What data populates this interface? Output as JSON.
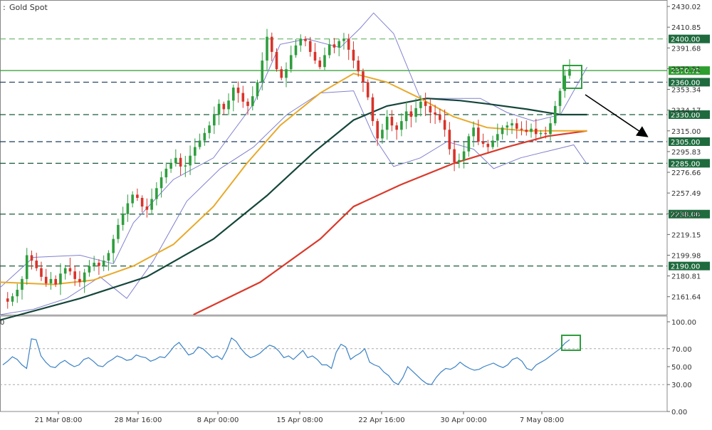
{
  "chart_title": "Gold Spot",
  "chart_data": [
    {
      "type": "candlestick",
      "title": "Gold Spot",
      "ylim": [
        2145,
        2436
      ],
      "y_ticks": [
        "2430.02",
        "2410.85",
        "2391.68",
        "2372.51",
        "2353.34",
        "2334.17",
        "2315.00",
        "2295.83",
        "2276.66",
        "2257.49",
        "2238.32",
        "2219.15",
        "2199.98",
        "2180.81",
        "2161.64"
      ],
      "x_labels": [
        "21 Mar 08:00",
        "28 Mar 16:00",
        "8 Apr 00:00",
        "15 Apr 08:00",
        "22 Apr 16:00",
        "30 Apr 00:00",
        "7 May 08:00"
      ],
      "horizontal_levels": [
        {
          "label": "2400.00",
          "value": 2400.0,
          "style": "dashed",
          "color": "#66b266"
        },
        {
          "label": "2370.72",
          "value": 2370.72,
          "style": "solid",
          "color": "#2e9e2e"
        },
        {
          "label": "2360.00",
          "value": 2360.0,
          "style": "dashed",
          "color": "#1a3d5c"
        },
        {
          "label": "2330.00",
          "value": 2330.0,
          "style": "dashed",
          "color": "#1a5c3a"
        },
        {
          "label": "2305.00",
          "value": 2305.0,
          "style": "dashed",
          "color": "#1a3d5c"
        },
        {
          "label": "2285.00",
          "value": 2285.0,
          "style": "dashed",
          "color": "#1a5c3a"
        },
        {
          "label": "2238.00",
          "value": 2238.0,
          "style": "dashed",
          "color": "#1a5c3a"
        },
        {
          "label": "2190.00",
          "value": 2190.0,
          "style": "dashed",
          "color": "#1a5c3a"
        }
      ],
      "price_path": [
        2160,
        2157,
        2162,
        2168,
        2178,
        2200,
        2195,
        2188,
        2180,
        2174,
        2178,
        2173,
        2183,
        2188,
        2185,
        2178,
        2175,
        2184,
        2190,
        2193,
        2190,
        2195,
        2202,
        2215,
        2228,
        2238,
        2248,
        2256,
        2253,
        2245,
        2242,
        2252,
        2262,
        2272,
        2280,
        2285,
        2290,
        2282,
        2283,
        2292,
        2300,
        2306,
        2313,
        2320,
        2330,
        2340,
        2335,
        2343,
        2355,
        2350,
        2342,
        2338,
        2347,
        2360,
        2380,
        2402,
        2388,
        2372,
        2364,
        2372,
        2385,
        2394,
        2400,
        2398,
        2388,
        2380,
        2374,
        2385,
        2395,
        2392,
        2398,
        2400,
        2390,
        2380,
        2370,
        2360,
        2346,
        2324,
        2308,
        2316,
        2328,
        2320,
        2316,
        2324,
        2333,
        2328,
        2336,
        2342,
        2338,
        2332,
        2330,
        2325,
        2316,
        2298,
        2286,
        2288,
        2296,
        2310,
        2318,
        2305,
        2303,
        2300,
        2306,
        2312,
        2318,
        2320,
        2322,
        2317,
        2316,
        2314,
        2317,
        2312,
        2313,
        2312,
        2322,
        2338,
        2352,
        2366,
        2372
      ],
      "sma_slow": [
        [
          0.0,
          2140
        ],
        [
          0.12,
          2160
        ],
        [
          0.22,
          2180
        ],
        [
          0.32,
          2215
        ],
        [
          0.4,
          2255
        ],
        [
          0.47,
          2295
        ],
        [
          0.53,
          2325
        ],
        [
          0.58,
          2338
        ],
        [
          0.64,
          2345
        ],
        [
          0.69,
          2343
        ],
        [
          0.73,
          2340
        ],
        [
          0.79,
          2335
        ],
        [
          0.84,
          2330
        ],
        [
          0.88,
          2330
        ]
      ],
      "sma_mid": [
        [
          0.0,
          2175
        ],
        [
          0.08,
          2173
        ],
        [
          0.14,
          2177
        ],
        [
          0.2,
          2190
        ],
        [
          0.26,
          2210
        ],
        [
          0.32,
          2245
        ],
        [
          0.37,
          2285
        ],
        [
          0.42,
          2320
        ],
        [
          0.48,
          2350
        ],
        [
          0.53,
          2368
        ],
        [
          0.58,
          2360
        ],
        [
          0.63,
          2345
        ],
        [
          0.68,
          2328
        ],
        [
          0.73,
          2318
        ],
        [
          0.79,
          2315
        ],
        [
          0.84,
          2315
        ],
        [
          0.88,
          2315
        ]
      ],
      "sma_fast": [
        [
          0.29,
          2145
        ],
        [
          0.39,
          2175
        ],
        [
          0.48,
          2215
        ],
        [
          0.53,
          2245
        ],
        [
          0.6,
          2265
        ],
        [
          0.68,
          2285
        ],
        [
          0.76,
          2300
        ],
        [
          0.82,
          2310
        ],
        [
          0.88,
          2315
        ]
      ],
      "bollinger_upper": [
        [
          0.0,
          2170
        ],
        [
          0.05,
          2198
        ],
        [
          0.12,
          2200
        ],
        [
          0.17,
          2192
        ],
        [
          0.2,
          2230
        ],
        [
          0.26,
          2270
        ],
        [
          0.32,
          2290
        ],
        [
          0.38,
          2340
        ],
        [
          0.42,
          2395
        ],
        [
          0.46,
          2400
        ],
        [
          0.51,
          2392
        ],
        [
          0.54,
          2410
        ],
        [
          0.56,
          2424
        ],
        [
          0.59,
          2405
        ],
        [
          0.63,
          2345
        ],
        [
          0.68,
          2345
        ],
        [
          0.72,
          2345
        ],
        [
          0.76,
          2332
        ],
        [
          0.8,
          2324
        ],
        [
          0.84,
          2330
        ],
        [
          0.88,
          2374
        ]
      ],
      "bollinger_lower": [
        [
          0.0,
          2145
        ],
        [
          0.05,
          2150
        ],
        [
          0.1,
          2160
        ],
        [
          0.15,
          2180
        ],
        [
          0.19,
          2160
        ],
        [
          0.23,
          2195
        ],
        [
          0.28,
          2250
        ],
        [
          0.33,
          2280
        ],
        [
          0.38,
          2300
        ],
        [
          0.43,
          2330
        ],
        [
          0.48,
          2350
        ],
        [
          0.53,
          2352
        ],
        [
          0.56,
          2310
        ],
        [
          0.59,
          2282
        ],
        [
          0.63,
          2290
        ],
        [
          0.67,
          2305
        ],
        [
          0.71,
          2298
        ],
        [
          0.74,
          2280
        ],
        [
          0.78,
          2290
        ],
        [
          0.82,
          2296
        ],
        [
          0.86,
          2302
        ],
        [
          0.88,
          2284
        ]
      ]
    },
    {
      "type": "line",
      "title": "RSI",
      "ylim": [
        0,
        100
      ],
      "y_ticks": [
        "100.00",
        "70.00",
        "50.00",
        "30.00",
        "0.00"
      ],
      "levels": [
        70,
        30
      ],
      "values": [
        52,
        56,
        61,
        58,
        52,
        48,
        81,
        80,
        62,
        55,
        50,
        49,
        54,
        57,
        53,
        50,
        52,
        58,
        60,
        56,
        51,
        50,
        55,
        58,
        62,
        60,
        57,
        58,
        63,
        61,
        60,
        56,
        58,
        61,
        60,
        66,
        73,
        77,
        70,
        63,
        65,
        72,
        70,
        65,
        60,
        62,
        58,
        68,
        82,
        78,
        70,
        64,
        60,
        62,
        65,
        70,
        74,
        72,
        67,
        60,
        62,
        58,
        63,
        68,
        60,
        62,
        58,
        52,
        52,
        48,
        66,
        75,
        72,
        58,
        62,
        65,
        70,
        55,
        52,
        50,
        44,
        40,
        33,
        30,
        38,
        50,
        45,
        40,
        35,
        31,
        30,
        38,
        44,
        48,
        47,
        50,
        55,
        51,
        48,
        46,
        47,
        50,
        52,
        54,
        51,
        49,
        52,
        58,
        60,
        56,
        48,
        46,
        52,
        55,
        58,
        62,
        66,
        70,
        76,
        80
      ],
      "callout_value": 78
    }
  ],
  "icons": [
    "arrow-down-right-icon",
    "highlight-box-icon"
  ]
}
